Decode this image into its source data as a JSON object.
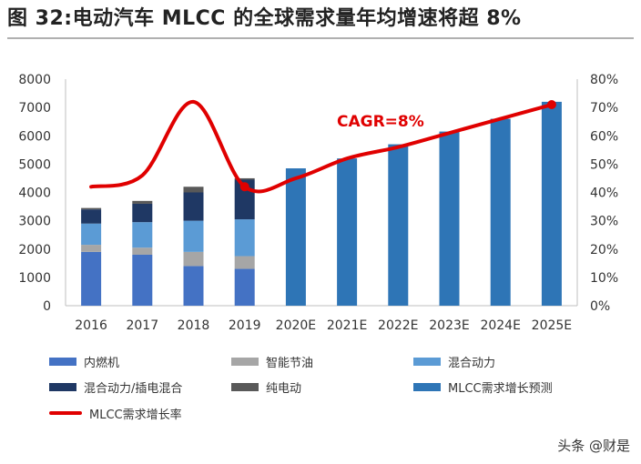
{
  "title": "图 32:电动汽车 MLCC 的全球需求量年均增速将超 8%",
  "watermark": "头条 @财是",
  "colors": {
    "ice": "#4472c4",
    "hev": "#a6a6a6",
    "phev": "#5b9bd5",
    "ev_mix": "#1f3864",
    "bev": "#595959",
    "forecast": "#2e75b6",
    "rate_line": "#e00000",
    "annotation": "#e00000",
    "axis_text": "#333333"
  },
  "chart_data": {
    "type": "bar",
    "categories": [
      "2016",
      "2017",
      "2018",
      "2019",
      "2020E",
      "2021E",
      "2022E",
      "2023E",
      "2024E",
      "2025E"
    ],
    "y_left": {
      "range": [
        0,
        8000
      ],
      "ticks": [
        "0",
        "1000",
        "2000",
        "3000",
        "4000",
        "5000",
        "6000",
        "7000",
        "8000"
      ]
    },
    "y_right": {
      "range": [
        0,
        80
      ],
      "unit": "%",
      "ticks": [
        "0%",
        "10%",
        "20%",
        "30%",
        "40%",
        "50%",
        "60%",
        "70%",
        "80%"
      ]
    },
    "series": [
      {
        "name": "内燃机",
        "type": "bar",
        "stack": "actual",
        "color_key": "ice",
        "values": [
          1900,
          1800,
          1400,
          1300,
          null,
          null,
          null,
          null,
          null,
          null
        ]
      },
      {
        "name": "智能节油",
        "type": "bar",
        "stack": "actual",
        "color_key": "hev",
        "values": [
          250,
          250,
          500,
          450,
          null,
          null,
          null,
          null,
          null,
          null
        ]
      },
      {
        "name": "混合动力",
        "type": "bar",
        "stack": "actual",
        "color_key": "phev",
        "values": [
          750,
          900,
          1100,
          1300,
          null,
          null,
          null,
          null,
          null,
          null
        ]
      },
      {
        "name": "混合动力/插电混合",
        "type": "bar",
        "stack": "actual",
        "color_key": "ev_mix",
        "values": [
          500,
          650,
          1000,
          1400,
          null,
          null,
          null,
          null,
          null,
          null
        ]
      },
      {
        "name": "纯电动",
        "type": "bar",
        "stack": "actual",
        "color_key": "bev",
        "values": [
          50,
          100,
          200,
          50,
          null,
          null,
          null,
          null,
          null,
          null
        ]
      },
      {
        "name": "MLCC需求增长预测",
        "type": "bar",
        "color_key": "forecast",
        "values": [
          null,
          null,
          null,
          null,
          4850,
          5200,
          5700,
          6150,
          6600,
          7200
        ]
      },
      {
        "name": "MLCC需求增长率",
        "type": "line",
        "axis": "right",
        "color_key": "rate_line",
        "values": [
          42,
          46,
          72,
          42,
          45,
          52,
          56,
          61,
          66,
          71
        ]
      }
    ],
    "annotations": [
      {
        "text": "CAGR=8%"
      }
    ],
    "grid": false,
    "legend_position": "bottom"
  }
}
